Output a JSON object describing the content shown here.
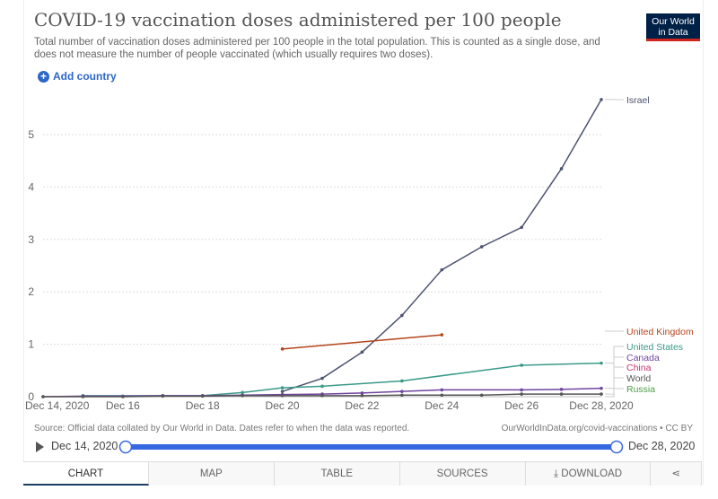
{
  "header": {
    "title": "COVID-19 vaccination doses administered per 100 people",
    "subtitle": "Total number of vaccination doses administered per 100 people in the total population. This is counted as a single dose, and does not measure the number of people vaccinated (which usually requires two doses).",
    "logo_text": "Our World in Data",
    "add_country": "Add country"
  },
  "chart_data": {
    "type": "line",
    "title": "COVID-19 vaccination doses administered per 100 people",
    "xlabel": "",
    "ylabel": "",
    "ylim": [
      0,
      5.7
    ],
    "xlim": [
      "2020-12-14",
      "2020-12-28"
    ],
    "grid": "horizontal dotted",
    "legend": "right (line end labels)",
    "y_ticks": [
      "0",
      "1",
      "2",
      "3",
      "4",
      "5"
    ],
    "x_ticks": [
      {
        "date": "2020-12-14",
        "label": "Dec 14, 2020"
      },
      {
        "date": "2020-12-16",
        "label": "Dec 16"
      },
      {
        "date": "2020-12-18",
        "label": "Dec 18"
      },
      {
        "date": "2020-12-20",
        "label": "Dec 20"
      },
      {
        "date": "2020-12-22",
        "label": "Dec 22"
      },
      {
        "date": "2020-12-24",
        "label": "Dec 24"
      },
      {
        "date": "2020-12-26",
        "label": "Dec 26"
      },
      {
        "date": "2020-12-28",
        "label": "Dec 28, 2020"
      }
    ],
    "series": [
      {
        "name": "Israel",
        "color": "#4d5470",
        "points": [
          [
            "2020-12-20",
            0.1
          ],
          [
            "2020-12-21",
            0.35
          ],
          [
            "2020-12-22",
            0.85
          ],
          [
            "2020-12-23",
            1.55
          ],
          [
            "2020-12-24",
            2.42
          ],
          [
            "2020-12-25",
            2.86
          ],
          [
            "2020-12-26",
            3.23
          ],
          [
            "2020-12-27",
            4.35
          ],
          [
            "2020-12-28",
            5.67
          ]
        ]
      },
      {
        "name": "United Kingdom",
        "color": "#b5441c",
        "points": [
          [
            "2020-12-20",
            0.91
          ],
          [
            "2020-12-24",
            1.18
          ]
        ]
      },
      {
        "name": "United States",
        "color": "#3a9a88",
        "points": [
          [
            "2020-12-15",
            0.02
          ],
          [
            "2020-12-17",
            0.02
          ],
          [
            "2020-12-18",
            0.02
          ],
          [
            "2020-12-19",
            0.08
          ],
          [
            "2020-12-20",
            0.17
          ],
          [
            "2020-12-21",
            0.2
          ],
          [
            "2020-12-23",
            0.3
          ],
          [
            "2020-12-26",
            0.6
          ],
          [
            "2020-12-28",
            0.64
          ]
        ]
      },
      {
        "name": "Canada",
        "color": "#7144a0",
        "points": [
          [
            "2020-12-14",
            0
          ],
          [
            "2020-12-15",
            0.01
          ],
          [
            "2020-12-16",
            0.01
          ],
          [
            "2020-12-17",
            0.02
          ],
          [
            "2020-12-18",
            0.02
          ],
          [
            "2020-12-19",
            0.03
          ],
          [
            "2020-12-20",
            0.04
          ],
          [
            "2020-12-21",
            0.05
          ],
          [
            "2020-12-22",
            0.07
          ],
          [
            "2020-12-23",
            0.1
          ],
          [
            "2020-12-24",
            0.13
          ],
          [
            "2020-12-26",
            0.13
          ],
          [
            "2020-12-27",
            0.14
          ],
          [
            "2020-12-28",
            0.16
          ]
        ]
      },
      {
        "name": "China",
        "color": "#c8356f",
        "points": []
      },
      {
        "name": "World",
        "color": "#555555",
        "points": [
          [
            "2020-12-14",
            0
          ],
          [
            "2020-12-15",
            0
          ],
          [
            "2020-12-16",
            0
          ],
          [
            "2020-12-17",
            0.01
          ],
          [
            "2020-12-18",
            0.01
          ],
          [
            "2020-12-19",
            0.02
          ],
          [
            "2020-12-20",
            0.02
          ],
          [
            "2020-12-21",
            0.02
          ],
          [
            "2020-12-22",
            0.02
          ],
          [
            "2020-12-23",
            0.03
          ],
          [
            "2020-12-24",
            0.03
          ],
          [
            "2020-12-25",
            0.03
          ],
          [
            "2020-12-26",
            0.05
          ],
          [
            "2020-12-27",
            0.05
          ],
          [
            "2020-12-28",
            0.05
          ]
        ]
      },
      {
        "name": "Russia",
        "color": "#4f9a4a",
        "points": []
      }
    ]
  },
  "footer": {
    "source": "Source: Official data collated by Our World in Data. Dates refer to when the data was reported.",
    "license": "OurWorldInData.org/covid-vaccinations • CC BY"
  },
  "timeline": {
    "start": "Dec 14, 2020",
    "end": "Dec 28, 2020",
    "range": [
      0,
      1
    ]
  },
  "tabs": [
    {
      "label": "CHART",
      "active": true
    },
    {
      "label": "MAP"
    },
    {
      "label": "TABLE"
    },
    {
      "label": "SOURCES"
    },
    {
      "label": "⤓ DOWNLOAD"
    },
    {
      "label": "⋖"
    }
  ],
  "colors": {
    "accent": "#3568e0"
  }
}
